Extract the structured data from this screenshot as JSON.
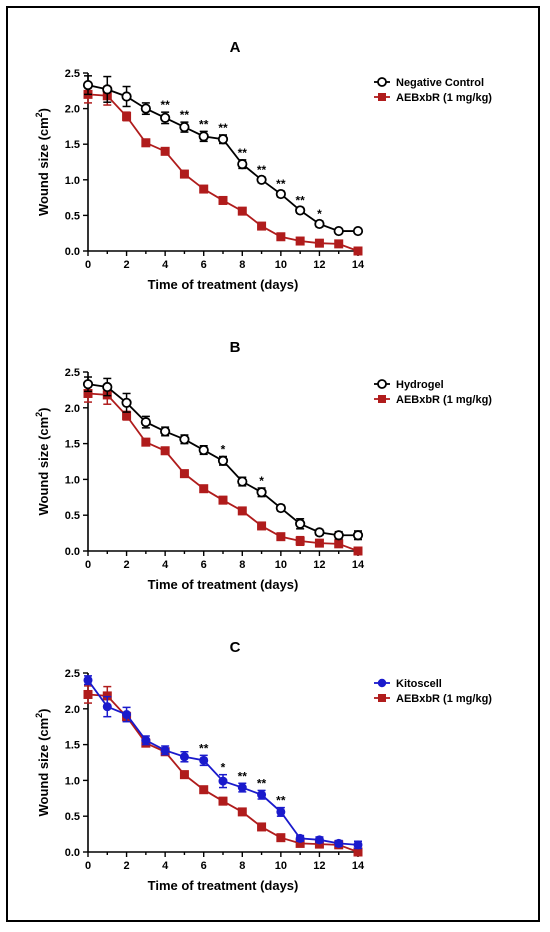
{
  "chart_data": [
    {
      "type": "line",
      "title": "A",
      "xlabel": "Time of treatment (days)",
      "ylabel_main": "Wound size (cm",
      "ylabel_sup": "2",
      "ylabel_close": ")",
      "xlim": [
        0,
        14
      ],
      "ylim": [
        0,
        2.5
      ],
      "xticks": [
        0,
        2,
        4,
        6,
        8,
        10,
        12,
        14
      ],
      "yticks": [
        0.0,
        0.5,
        1.0,
        1.5,
        2.0,
        2.5
      ],
      "ytick_labels": [
        "0.0",
        "0.5",
        "1.0",
        "1.5",
        "2.0",
        "2.5"
      ],
      "grid": false,
      "legend_position": "top-right",
      "series": [
        {
          "name": "Negative Control",
          "marker": "open-circle",
          "color": "#000000",
          "x": [
            0,
            1,
            2,
            3,
            4,
            5,
            6,
            7,
            8,
            9,
            10,
            11,
            12,
            13,
            14
          ],
          "y": [
            2.33,
            2.27,
            2.17,
            2.0,
            1.87,
            1.74,
            1.61,
            1.57,
            1.22,
            1.0,
            0.8,
            0.57,
            0.38,
            0.28,
            0.28
          ],
          "err": [
            0.13,
            0.18,
            0.14,
            0.08,
            0.08,
            0.07,
            0.07,
            0.06,
            0.06,
            0.04,
            0.04,
            0.04,
            0.04,
            0.02,
            0.02
          ]
        },
        {
          "name": "AEBxbR (1 mg/kg)",
          "marker": "filled-square",
          "color": "#b01c1c",
          "x": [
            0,
            1,
            2,
            3,
            4,
            5,
            6,
            7,
            8,
            9,
            10,
            11,
            12,
            13,
            14
          ],
          "y": [
            2.2,
            2.18,
            1.89,
            1.52,
            1.4,
            1.08,
            0.87,
            0.71,
            0.56,
            0.35,
            0.2,
            0.14,
            0.11,
            0.1,
            0.0
          ],
          "err": [
            0.12,
            0.13,
            0.06,
            0.05,
            0.04,
            0.05,
            0.04,
            0.05,
            0.04,
            0.04,
            0.03,
            0.02,
            0.02,
            0.02,
            0.01
          ]
        }
      ],
      "annotations": [
        {
          "x": 4,
          "y": 1.87,
          "text": "**"
        },
        {
          "x": 5,
          "y": 1.74,
          "text": "**"
        },
        {
          "x": 6,
          "y": 1.61,
          "text": "**"
        },
        {
          "x": 7,
          "y": 1.57,
          "text": "**"
        },
        {
          "x": 8,
          "y": 1.22,
          "text": "**"
        },
        {
          "x": 9,
          "y": 1.0,
          "text": "**"
        },
        {
          "x": 10,
          "y": 0.8,
          "text": "**"
        },
        {
          "x": 11,
          "y": 0.57,
          "text": "**"
        },
        {
          "x": 12,
          "y": 0.38,
          "text": "*"
        }
      ]
    },
    {
      "type": "line",
      "title": "B",
      "xlabel": "Time of treatment (days)",
      "ylabel_main": "Wound size (cm",
      "ylabel_sup": "2",
      "ylabel_close": ")",
      "xlim": [
        0,
        14
      ],
      "ylim": [
        0,
        2.5
      ],
      "xticks": [
        0,
        2,
        4,
        6,
        8,
        10,
        12,
        14
      ],
      "yticks": [
        0.0,
        0.5,
        1.0,
        1.5,
        2.0,
        2.5
      ],
      "ytick_labels": [
        "0.0",
        "0.5",
        "1.0",
        "1.5",
        "2.0",
        "2.5"
      ],
      "grid": false,
      "legend_position": "top-right",
      "series": [
        {
          "name": "Hydrogel",
          "marker": "open-circle",
          "color": "#000000",
          "x": [
            0,
            1,
            2,
            3,
            4,
            5,
            6,
            7,
            8,
            9,
            10,
            11,
            12,
            13,
            14
          ],
          "y": [
            2.33,
            2.29,
            2.07,
            1.8,
            1.67,
            1.56,
            1.41,
            1.26,
            0.97,
            0.82,
            0.6,
            0.38,
            0.26,
            0.22,
            0.22
          ],
          "err": [
            0.1,
            0.12,
            0.13,
            0.08,
            0.06,
            0.06,
            0.06,
            0.06,
            0.06,
            0.06,
            0.04,
            0.07,
            0.04,
            0.05,
            0.06
          ]
        },
        {
          "name": "AEBxbR (1 mg/kg)",
          "marker": "filled-square",
          "color": "#b01c1c",
          "x": [
            0,
            1,
            2,
            3,
            4,
            5,
            6,
            7,
            8,
            9,
            10,
            11,
            12,
            13,
            14
          ],
          "y": [
            2.2,
            2.18,
            1.89,
            1.52,
            1.4,
            1.08,
            0.87,
            0.71,
            0.56,
            0.35,
            0.2,
            0.14,
            0.11,
            0.1,
            0.0
          ],
          "err": [
            0.12,
            0.13,
            0.06,
            0.05,
            0.04,
            0.05,
            0.04,
            0.05,
            0.04,
            0.04,
            0.03,
            0.06,
            0.03,
            0.02,
            0.01
          ]
        }
      ],
      "annotations": [
        {
          "x": 7,
          "y": 1.26,
          "text": "*"
        },
        {
          "x": 9,
          "y": 0.82,
          "text": "*"
        }
      ]
    },
    {
      "type": "line",
      "title": "C",
      "xlabel": "Time of treatment (days)",
      "ylabel_main": "Wound size (cm",
      "ylabel_sup": "2",
      "ylabel_close": ")",
      "xlim": [
        0,
        14
      ],
      "ylim": [
        0,
        2.5
      ],
      "xticks": [
        0,
        2,
        4,
        6,
        8,
        10,
        12,
        14
      ],
      "yticks": [
        0.0,
        0.5,
        1.0,
        1.5,
        2.0,
        2.5
      ],
      "ytick_labels": [
        "0.0",
        "0.5",
        "1.0",
        "1.5",
        "2.0",
        "2.5"
      ],
      "grid": false,
      "legend_position": "top-right",
      "series": [
        {
          "name": "Kitoscell",
          "marker": "filled-circle",
          "color": "#1a1acc",
          "x": [
            0,
            1,
            2,
            3,
            4,
            5,
            6,
            7,
            8,
            9,
            10,
            11,
            12,
            13,
            14
          ],
          "y": [
            2.4,
            2.03,
            1.92,
            1.56,
            1.42,
            1.33,
            1.28,
            0.99,
            0.9,
            0.8,
            0.56,
            0.19,
            0.17,
            0.12,
            0.1
          ],
          "err": [
            0.06,
            0.14,
            0.1,
            0.06,
            0.06,
            0.07,
            0.07,
            0.09,
            0.06,
            0.06,
            0.06,
            0.04,
            0.04,
            0.04,
            0.05
          ]
        },
        {
          "name": "AEBxbR (1 mg/kg)",
          "marker": "filled-square",
          "color": "#b01c1c",
          "x": [
            0,
            1,
            2,
            3,
            4,
            5,
            6,
            7,
            8,
            9,
            10,
            11,
            12,
            13,
            14
          ],
          "y": [
            2.2,
            2.18,
            1.89,
            1.52,
            1.4,
            1.08,
            0.87,
            0.71,
            0.56,
            0.35,
            0.2,
            0.12,
            0.11,
            0.1,
            0.0
          ],
          "err": [
            0.12,
            0.13,
            0.06,
            0.05,
            0.04,
            0.05,
            0.04,
            0.05,
            0.04,
            0.04,
            0.03,
            0.04,
            0.02,
            0.02,
            0.01
          ]
        }
      ],
      "annotations": [
        {
          "x": 6,
          "y": 1.28,
          "text": "**"
        },
        {
          "x": 7,
          "y": 0.99,
          "text": "*"
        },
        {
          "x": 8,
          "y": 0.9,
          "text": "**"
        },
        {
          "x": 9,
          "y": 0.8,
          "text": "**"
        },
        {
          "x": 10,
          "y": 0.56,
          "text": "**"
        }
      ]
    }
  ]
}
